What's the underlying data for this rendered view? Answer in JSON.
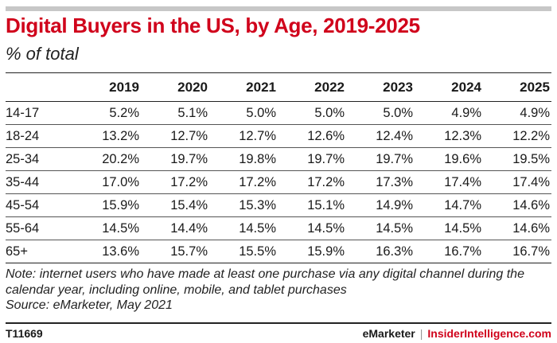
{
  "header": {
    "title": "Digital Buyers in the US, by Age, 2019-2025",
    "subtitle": "% of total"
  },
  "chart_data": {
    "type": "table",
    "title": "Digital Buyers in the US, by Age, 2019-2025",
    "subtitle": "% of total",
    "columns": [
      "2019",
      "2020",
      "2021",
      "2022",
      "2023",
      "2024",
      "2025"
    ],
    "rows": [
      {
        "label": "14-17",
        "values": [
          "5.2%",
          "5.1%",
          "5.0%",
          "5.0%",
          "5.0%",
          "4.9%",
          "4.9%"
        ]
      },
      {
        "label": "18-24",
        "values": [
          "13.2%",
          "12.7%",
          "12.7%",
          "12.6%",
          "12.4%",
          "12.3%",
          "12.2%"
        ]
      },
      {
        "label": "25-34",
        "values": [
          "20.2%",
          "19.7%",
          "19.8%",
          "19.7%",
          "19.7%",
          "19.6%",
          "19.5%"
        ]
      },
      {
        "label": "35-44",
        "values": [
          "17.0%",
          "17.2%",
          "17.2%",
          "17.2%",
          "17.3%",
          "17.4%",
          "17.4%"
        ]
      },
      {
        "label": "45-54",
        "values": [
          "15.9%",
          "15.4%",
          "15.3%",
          "15.1%",
          "14.9%",
          "14.7%",
          "14.6%"
        ]
      },
      {
        "label": "55-64",
        "values": [
          "14.5%",
          "14.4%",
          "14.5%",
          "14.5%",
          "14.5%",
          "14.5%",
          "14.6%"
        ]
      },
      {
        "label": "65+",
        "values": [
          "13.6%",
          "15.7%",
          "15.5%",
          "15.9%",
          "16.3%",
          "16.7%",
          "16.7%"
        ]
      }
    ]
  },
  "footer": {
    "note": "Note: internet users who have made at least one purchase via any digital channel during the calendar year, including online, mobile, and tablet purchases",
    "source": "Source: eMarketer, May 2021",
    "code": "T11669",
    "brand_left": "eMarketer",
    "separator": "|",
    "brand_right": "InsiderIntelligence.com"
  },
  "colors": {
    "accent": "#d0021b",
    "rule": "#c7c7c7"
  }
}
